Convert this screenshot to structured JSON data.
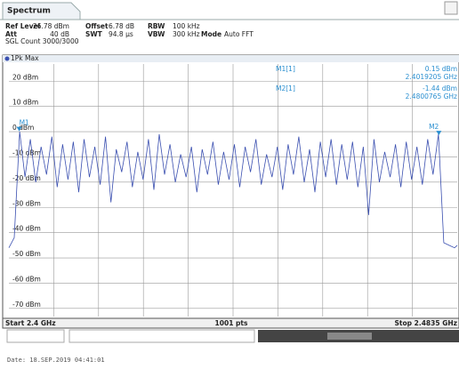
{
  "chart_data": {
    "type": "line",
    "tab": "Spectrum",
    "settings": [
      {
        "name": "Ref Level",
        "value": "26.78 dBm"
      },
      {
        "name": "Offset",
        "value": "6.78 dB"
      },
      {
        "name": "RBW",
        "value": "100 kHz"
      },
      {
        "name": "Att",
        "value": "40 dB"
      },
      {
        "name": "SWT",
        "value": "94.8 µs"
      },
      {
        "name": "VBW",
        "value": "300 kHz"
      },
      {
        "name": "Mode",
        "value": "Auto FFT"
      }
    ],
    "count": "SGL Count 3000/3000",
    "x": [
      2.4,
      2.401,
      2.402,
      2.403,
      2.404,
      2.405,
      2.406,
      2.407,
      2.408,
      2.409,
      2.41,
      2.411,
      2.412,
      2.413,
      2.414,
      2.415,
      2.416,
      2.417,
      2.418,
      2.419,
      2.42,
      2.421,
      2.422,
      2.423,
      2.424,
      2.425,
      2.426,
      2.427,
      2.428,
      2.429,
      2.43,
      2.431,
      2.432,
      2.433,
      2.434,
      2.435,
      2.436,
      2.437,
      2.438,
      2.439,
      2.44,
      2.441,
      2.442,
      2.443,
      2.444,
      2.445,
      2.446,
      2.447,
      2.448,
      2.449,
      2.45,
      2.451,
      2.452,
      2.453,
      2.454,
      2.455,
      2.456,
      2.457,
      2.458,
      2.459,
      2.46,
      2.461,
      2.462,
      2.463,
      2.464,
      2.465,
      2.466,
      2.467,
      2.468,
      2.469,
      2.47,
      2.471,
      2.472,
      2.473,
      2.474,
      2.475,
      2.476,
      2.477,
      2.478,
      2.479,
      2.48,
      2.481,
      2.482,
      2.483,
      2.4835
    ],
    "series": [
      {
        "name": "1Pk Max",
        "color": "#3a4fb0",
        "values": [
          -46,
          -42,
          0,
          -18,
          -3,
          -20,
          -6,
          -17,
          -2,
          -22,
          -5,
          -19,
          -4,
          -24,
          -3,
          -18,
          -6,
          -21,
          -2,
          -28,
          -7,
          -16,
          -4,
          -22,
          -8,
          -19,
          -3,
          -23,
          -1,
          -17,
          -5,
          -20,
          -9,
          -18,
          -6,
          -24,
          -7,
          -17,
          -4,
          -21,
          -8,
          -19,
          -5,
          -22,
          -6,
          -16,
          -3,
          -21,
          -9,
          -18,
          -6,
          -23,
          -5,
          -17,
          -2,
          -20,
          -7,
          -24,
          -4,
          -18,
          -3,
          -21,
          -5,
          -19,
          -4,
          -22,
          -6,
          -33,
          -3,
          -20,
          -8,
          -18,
          -5,
          -22,
          -4,
          -19,
          -6,
          -21,
          -3,
          -17,
          -1,
          -44,
          -45,
          -46,
          -45
        ]
      }
    ],
    "xlim": [
      2.4,
      2.4835
    ],
    "ylim": [
      -73.22,
      26.78
    ],
    "yticks": [
      {
        "value": 20,
        "label": "20 dBm"
      },
      {
        "value": 10,
        "label": "10 dBm"
      },
      {
        "value": 0,
        "label": "0 dBm"
      },
      {
        "value": -10,
        "label": "-10 dBm"
      },
      {
        "value": -20,
        "label": "-20 dBm"
      },
      {
        "value": -30,
        "label": "-30 dBm"
      },
      {
        "value": -40,
        "label": "-40 dBm"
      },
      {
        "value": -50,
        "label": "-50 dBm"
      },
      {
        "value": -60,
        "label": "-60 dBm"
      },
      {
        "value": -70,
        "label": "-70 dBm"
      }
    ],
    "grid": true,
    "markers": [
      {
        "label": "M1",
        "name": "M1[1]",
        "x": 2.4019205,
        "y": 0.15,
        "y_label": "0.15 dBm",
        "x_label": "2.4019205 GHz"
      },
      {
        "label": "M2",
        "name": "M2[1]",
        "x": 2.4800765,
        "y": -1.44,
        "y_label": "-1.44 dBm",
        "x_label": "2.4800765 GHz"
      }
    ],
    "start": "Start 2.4 GHz",
    "points": "1001 pts",
    "stop": "Stop 2.4835 GHz",
    "date": "Date: 18.SEP.2019  04:41:01"
  }
}
